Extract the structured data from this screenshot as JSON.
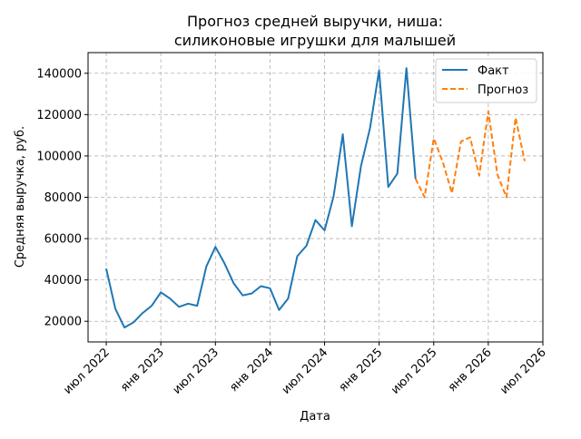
{
  "chart_data": {
    "type": "line",
    "title_line1": "Прогноз средней выручки, ниша:",
    "title_line2": "силиконовые игрушки для малышей",
    "xlabel": "Дата",
    "ylabel": "Средняя выручка, руб.",
    "ylim": [
      10000,
      150000
    ],
    "y_ticks": [
      20000,
      40000,
      60000,
      80000,
      100000,
      120000,
      140000
    ],
    "y_tick_labels": [
      "20000",
      "40000",
      "60000",
      "80000",
      "100000",
      "120000",
      "140000"
    ],
    "x_ticks": [
      {
        "date": "2022-07",
        "label": "июл 2022"
      },
      {
        "date": "2023-01",
        "label": "янв 2023"
      },
      {
        "date": "2023-07",
        "label": "июл 2023"
      },
      {
        "date": "2024-01",
        "label": "янв 2024"
      },
      {
        "date": "2024-07",
        "label": "июл 2024"
      },
      {
        "date": "2025-01",
        "label": "янв 2025"
      },
      {
        "date": "2025-07",
        "label": "июл 2025"
      },
      {
        "date": "2026-01",
        "label": "янв 2026"
      },
      {
        "date": "2026-07",
        "label": "июл 2026"
      }
    ],
    "xlim": [
      "2022-05",
      "2026-07"
    ],
    "grid": true,
    "legend_position": "top-right",
    "series": [
      {
        "name": "Факт",
        "color": "#1f77b4",
        "style": "solid",
        "x": [
          "2022-07",
          "2022-08",
          "2022-09",
          "2022-10",
          "2022-11",
          "2022-12",
          "2023-01",
          "2023-02",
          "2023-03",
          "2023-04",
          "2023-05",
          "2023-06",
          "2023-07",
          "2023-08",
          "2023-09",
          "2023-10",
          "2023-11",
          "2023-12",
          "2024-01",
          "2024-02",
          "2024-03",
          "2024-04",
          "2024-05",
          "2024-06",
          "2024-07",
          "2024-08",
          "2024-09",
          "2024-10",
          "2024-11",
          "2024-12",
          "2025-01",
          "2025-02",
          "2025-03",
          "2025-04",
          "2025-05"
        ],
        "values": [
          45500,
          26000,
          17000,
          19500,
          24000,
          27500,
          34000,
          31000,
          27000,
          28500,
          27500,
          46500,
          56000,
          48000,
          38500,
          32500,
          33500,
          37000,
          36000,
          25500,
          31000,
          51500,
          56500,
          69000,
          64000,
          80500,
          110500,
          66000,
          95000,
          113500,
          141500,
          85000,
          91500,
          142500,
          89000
        ]
      },
      {
        "name": "Прогноз",
        "color": "#ff7f0e",
        "style": "dashed",
        "x": [
          "2025-05",
          "2025-06",
          "2025-07",
          "2025-08",
          "2025-09",
          "2025-10",
          "2025-11",
          "2025-12",
          "2026-01",
          "2026-02",
          "2026-03",
          "2026-04",
          "2026-05"
        ],
        "values": [
          89000,
          80000,
          108500,
          97000,
          82000,
          107000,
          109000,
          90500,
          121500,
          91000,
          80000,
          118500,
          97500
        ]
      }
    ]
  }
}
